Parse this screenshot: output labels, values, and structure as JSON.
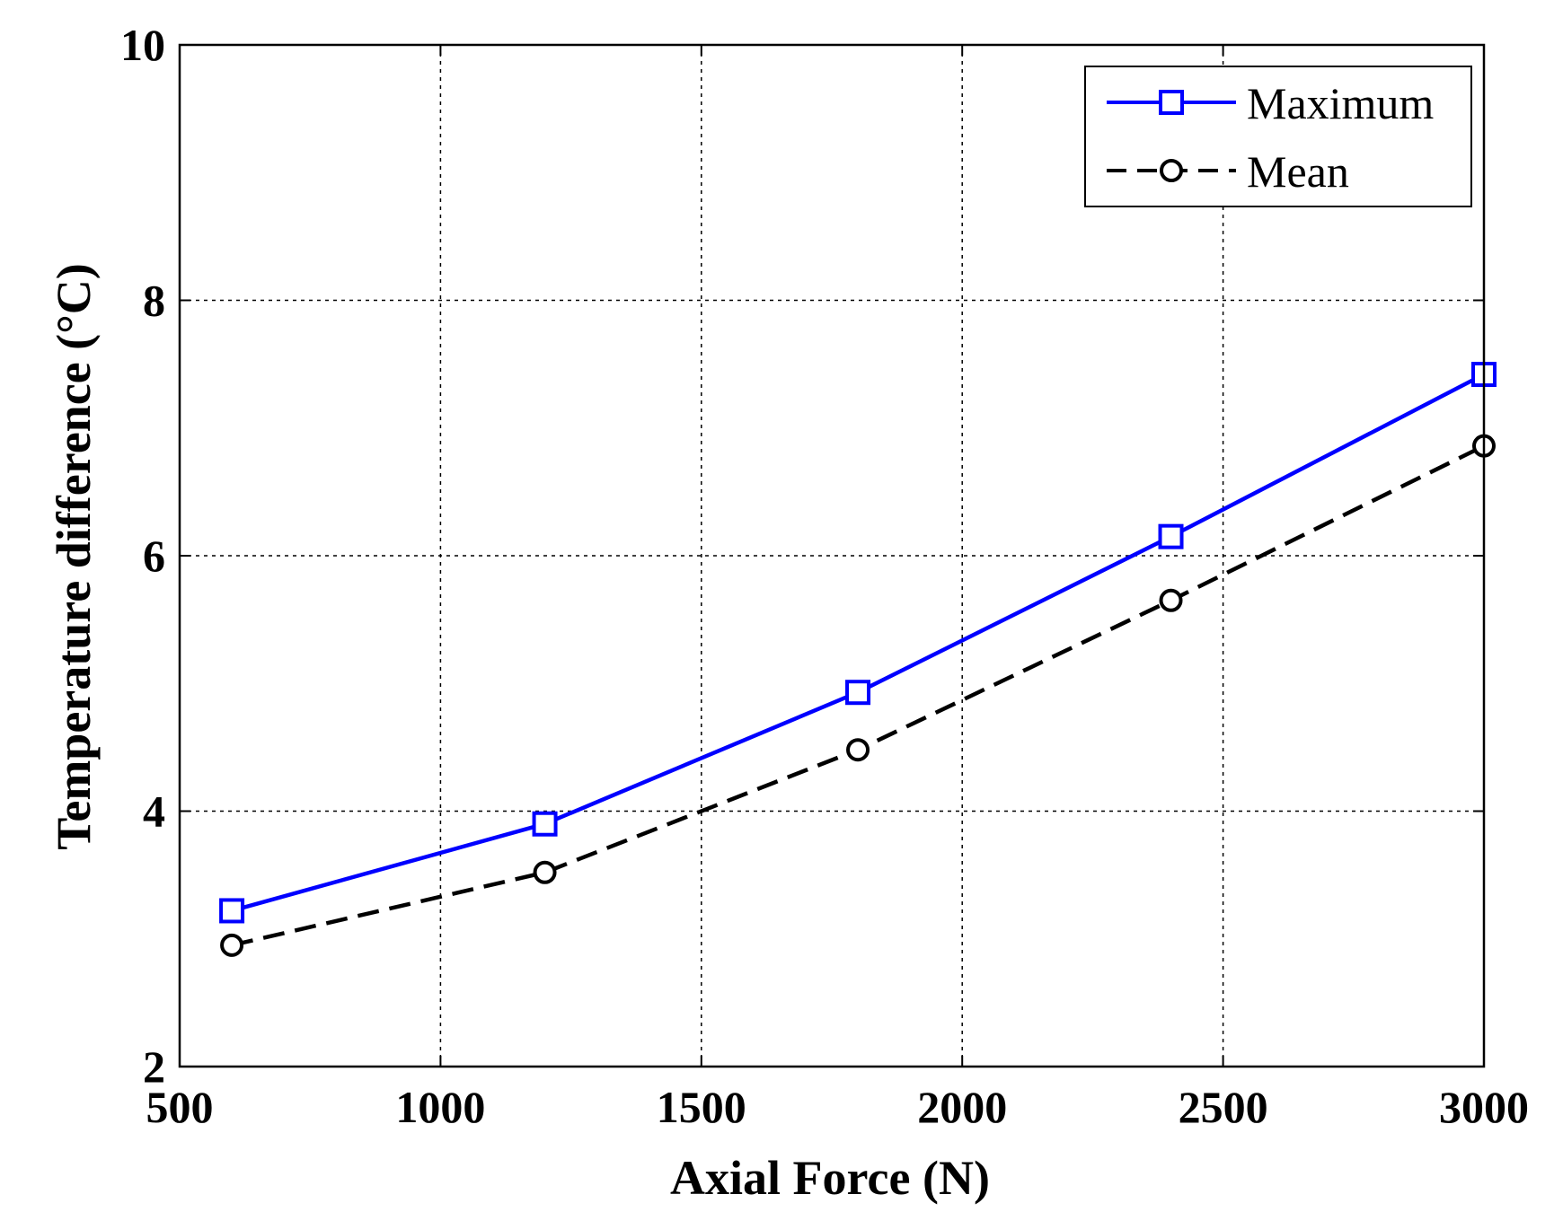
{
  "chart_data": {
    "type": "line",
    "title": "",
    "xlabel": "Axial Force (N)",
    "ylabel": "Temperature difference (°C)",
    "xlim": [
      500,
      3000
    ],
    "ylim": [
      2,
      10
    ],
    "x_ticks": [
      500,
      1000,
      1500,
      2000,
      2500,
      3000
    ],
    "y_ticks": [
      2,
      4,
      6,
      8,
      10
    ],
    "x_tick_labels": [
      "500",
      "1000",
      "1500",
      "2000",
      "2500",
      "3000"
    ],
    "y_tick_labels": [
      "2",
      "4",
      "6",
      "8",
      "10"
    ],
    "grid": true,
    "legend_position": "top-right",
    "x": [
      600,
      1200,
      1800,
      2400,
      3000
    ],
    "series": [
      {
        "name": "Maximum",
        "values": [
          3.22,
          3.9,
          4.93,
          6.15,
          7.42
        ],
        "color": "#0000ff",
        "marker": "square",
        "line_style": "solid"
      },
      {
        "name": "Mean",
        "values": [
          2.95,
          3.52,
          4.48,
          5.65,
          6.86
        ],
        "color": "#000000",
        "marker": "circle",
        "line_style": "dashed"
      }
    ]
  }
}
